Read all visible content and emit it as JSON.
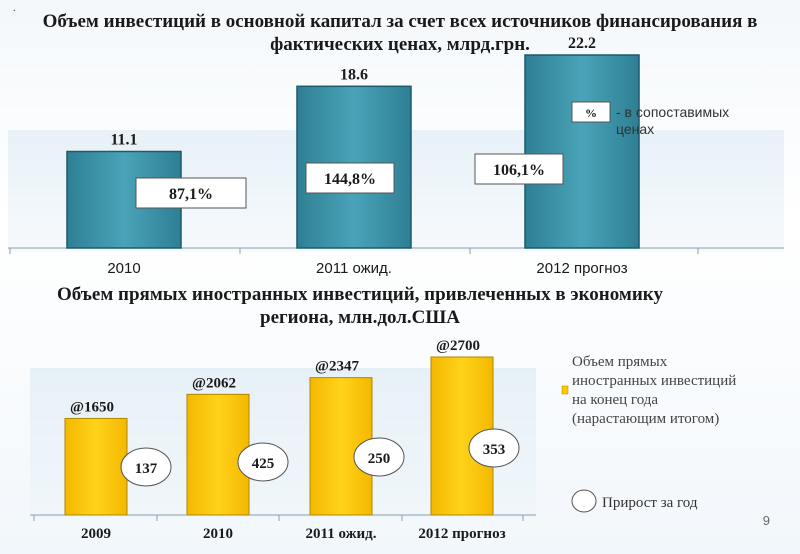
{
  "chart_data": [
    {
      "type": "bar",
      "title": "Объем инвестиций в основной капитал за счет всех источников финансирования в фактических ценах, млрд.грн.",
      "categories": [
        "2010",
        "2011 ожид.",
        "2012 прогноз"
      ],
      "values": [
        11.1,
        18.6,
        22.2
      ],
      "value_labels": [
        "11.1",
        "18.6",
        "22.2"
      ],
      "percent_labels": [
        "87,1%",
        "144,8%",
        "106,1%"
      ],
      "legend": [
        {
          "marker": "%",
          "label": "- в сопоставимых ценах"
        }
      ],
      "colors": {
        "bar": "#3a8ea3",
        "bar_edge": "#1d5a6a"
      }
    },
    {
      "type": "bar",
      "title": "Объем прямых иностранных инвестиций, привлеченных в экономику региона, млн.дол.США",
      "categories": [
        "2009",
        "2010",
        "2011 ожид.",
        "2012 прогноз"
      ],
      "values": [
        1650,
        2062,
        2347,
        2700
      ],
      "value_labels": [
        "@1650",
        "@2062",
        "@2347",
        "@2700"
      ],
      "increment_labels": [
        "137",
        "425",
        "250",
        "353"
      ],
      "legend": [
        {
          "marker": "bar",
          "label": "Объем прямых иностранных инвестиций на конец года (нарастающим итогом)"
        },
        {
          "marker": "circle",
          "label": "Прирост за год"
        }
      ],
      "colors": {
        "bar": "#ffc800",
        "bar_edge": "#b08600"
      }
    }
  ],
  "page": {
    "number": "9",
    "corner_mark": "."
  }
}
